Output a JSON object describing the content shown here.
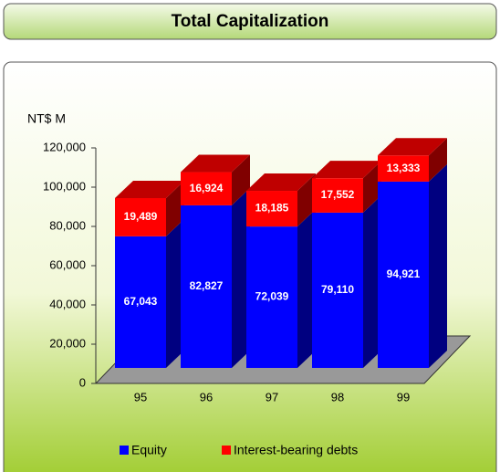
{
  "chart_data": {
    "type": "stacked_bar_3d",
    "title": "Total Capitalization",
    "y_label": "NT$ M",
    "categories": [
      "95",
      "96",
      "97",
      "98",
      "99"
    ],
    "series": [
      {
        "name": "Equity",
        "color": "#0000ff",
        "values": [
          67043,
          82827,
          72039,
          79110,
          94921
        ],
        "value_labels": [
          "67,043",
          "82,827",
          "72,039",
          "79,110",
          "94,921"
        ]
      },
      {
        "name": "Interest-bearing debts",
        "color": "#ff0000",
        "values": [
          19489,
          16924,
          18185,
          17552,
          13333
        ],
        "value_labels": [
          "19,489",
          "16,924",
          "18,185",
          "17,552",
          "13,333"
        ]
      }
    ],
    "ylim": [
      0,
      120000
    ],
    "yticks": [
      0,
      {
        "value": 20000,
        "label": "20,000"
      },
      {
        "value": 40000,
        "label": "40,000"
      },
      {
        "value": 60000,
        "label": "60,000"
      },
      {
        "value": 80000,
        "label": "80,000"
      },
      {
        "value": 100000,
        "label": "100,000"
      },
      {
        "value": 120000,
        "label": "120,000"
      }
    ],
    "legend": "bottom"
  }
}
